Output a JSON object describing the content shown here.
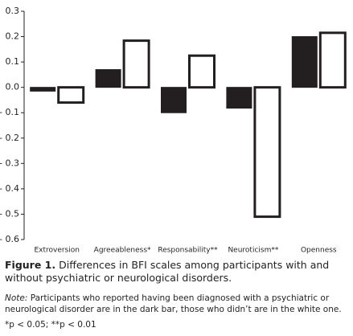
{
  "chart_data": {
    "type": "bar",
    "categories": [
      "Extroversion",
      "Agreeableness*",
      "Responsability**",
      "Neuroticism**",
      "Openness"
    ],
    "series": [
      {
        "color": "#231f20",
        "values": [
          -0.015,
          0.07,
          -0.1,
          -0.082,
          0.2
        ]
      },
      {
        "color": "#ffffff",
        "values": [
          -0.06,
          0.184,
          0.125,
          -0.51,
          0.215
        ]
      }
    ],
    "ylim": [
      -0.6,
      0.3
    ],
    "yticks": [
      0.3,
      0.2,
      0.1,
      {
        "value": 0,
        "label": "0.0"
      },
      {
        "value": -0.1,
        "label": "- 0.1"
      },
      {
        "value": -0.2,
        "label": "- 0.2"
      },
      {
        "value": -0.3,
        "label": "- 0.3"
      },
      {
        "value": -0.4,
        "label": "- 0.4"
      },
      {
        "value": -0.5,
        "label": "- 0.5"
      },
      {
        "value": -0.6,
        "label": "- 0.6"
      }
    ],
    "caption_label": "Figure 1.",
    "caption": "Differences in BFI scales among participants with and without psychiatric or neurological disorders.",
    "note_label": "Note:",
    "note": "Participants who reported having been diagnosed with a psychiatric or neurological disorder are in the dark bar, those who didn’t are in the white one.",
    "footnote": "*p < 0.05; **p < 0.01"
  }
}
